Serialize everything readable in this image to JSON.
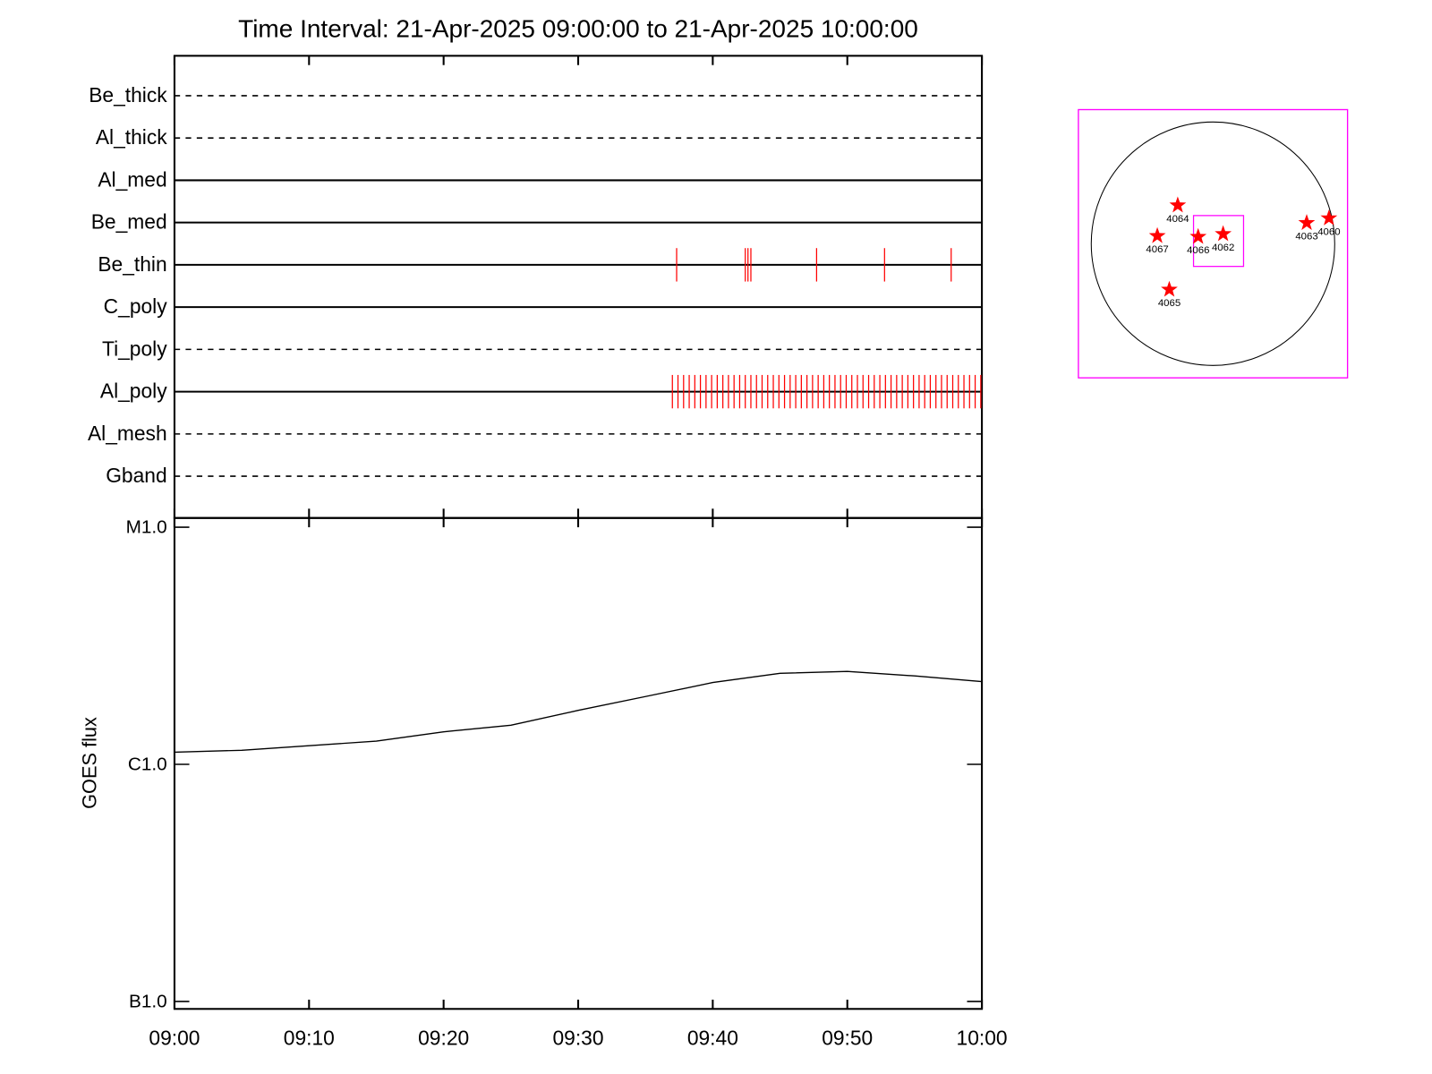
{
  "chart_data": [
    {
      "type": "timeline",
      "title": "Time Interval: 21-Apr-2025 09:00:00 to 21-Apr-2025 10:00:00",
      "categories": [
        "Be_thick",
        "Al_thick",
        "Al_med",
        "Be_med",
        "Be_thin",
        "C_poly",
        "Ti_poly",
        "Al_poly",
        "Al_mesh",
        "Gband"
      ],
      "line_styles": [
        "dashed",
        "dashed",
        "solid",
        "solid",
        "solid",
        "solid",
        "dashed",
        "solid",
        "dashed",
        "dashed"
      ],
      "event_color": "#ff0000",
      "events": [
        [],
        [],
        [],
        [],
        [
          "09:37:19",
          "09:42:25",
          "09:42:37",
          "09:42:50",
          "09:47:43",
          "09:52:46",
          "09:57:43"
        ],
        [],
        [],
        [
          "09:37:00",
          "09:37:25",
          "09:37:50",
          "09:38:15",
          "09:38:40",
          "09:39:05",
          "09:39:30",
          "09:39:55",
          "09:40:20",
          "09:40:45",
          "09:41:10",
          "09:41:35",
          "09:42:00",
          "09:42:25",
          "09:42:50",
          "09:43:15",
          "09:43:40",
          "09:44:05",
          "09:44:30",
          "09:44:55",
          "09:45:20",
          "09:45:45",
          "09:46:10",
          "09:46:35",
          "09:47:00",
          "09:47:25",
          "09:47:50",
          "09:48:15",
          "09:48:40",
          "09:49:05",
          "09:49:30",
          "09:49:55",
          "09:50:20",
          "09:50:45",
          "09:51:10",
          "09:51:35",
          "09:52:00",
          "09:52:25",
          "09:52:50",
          "09:53:15",
          "09:53:40",
          "09:54:05",
          "09:54:30",
          "09:54:55",
          "09:55:20",
          "09:55:45",
          "09:56:10",
          "09:56:35",
          "09:57:00",
          "09:57:25",
          "09:57:50",
          "09:58:15",
          "09:58:40",
          "09:59:05",
          "09:59:30",
          "09:59:55"
        ],
        [],
        []
      ],
      "xlim": [
        "09:00",
        "10:00"
      ],
      "xticks": [
        "09:00",
        "09:10",
        "09:20",
        "09:30",
        "09:40",
        "09:50",
        "10:00"
      ]
    },
    {
      "type": "line",
      "ylabel": "GOES flux",
      "x": [
        "09:00",
        "09:05",
        "09:10",
        "09:15",
        "09:20",
        "09:25",
        "09:30",
        "09:35",
        "09:40",
        "09:45",
        "09:50",
        "09:55",
        "10:00"
      ],
      "values": [
        1.125e-06,
        1.146e-06,
        1.198e-06,
        1.253e-06,
        1.372e-06,
        1.462e-06,
        1.689e-06,
        1.932e-06,
        2.213e-06,
        2.42e-06,
        2.466e-06,
        2.36e-06,
        2.234e-06
      ],
      "color": "#000000",
      "log_scale": true,
      "xlim": [
        "09:00",
        "10:00"
      ],
      "xticks": [
        "09:00",
        "09:10",
        "09:20",
        "09:30",
        "09:40",
        "09:50",
        "10:00"
      ],
      "ylim": [
        9.3e-08,
        1.094e-05
      ],
      "yticks": [
        {
          "value": 1e-07,
          "label": "B1.0"
        },
        {
          "value": 1e-06,
          "label": "C1.0"
        },
        {
          "value": 1e-05,
          "label": "M1.0"
        }
      ]
    },
    {
      "type": "map",
      "xlim": [
        -1100,
        1100
      ],
      "ylim": [
        -1100,
        1100
      ],
      "disk_radius": 995,
      "frame_color": "#ff00ff",
      "marker_color": "#ff0000",
      "fov": {
        "xlim": [
          -159,
          250
        ],
        "ylim": [
          -186,
          231
        ]
      },
      "points": [
        {
          "label": "4060",
          "x": 948,
          "y": 209
        },
        {
          "label": "4062",
          "x": 83,
          "y": 80
        },
        {
          "label": "4063",
          "x": 766,
          "y": 171
        },
        {
          "label": "4064",
          "x": -288,
          "y": 315
        },
        {
          "label": "4065",
          "x": -357,
          "y": -376
        },
        {
          "label": "4066",
          "x": -121,
          "y": 57
        },
        {
          "label": "4067",
          "x": -455,
          "y": 64
        }
      ]
    }
  ]
}
